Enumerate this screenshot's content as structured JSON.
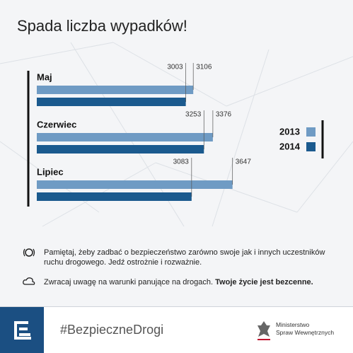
{
  "chart_data": {
    "type": "bar",
    "orientation": "horizontal",
    "title": "Spada liczba wypadków!",
    "categories": [
      "Maj",
      "Czerwiec",
      "Lipiec"
    ],
    "series": [
      {
        "name": "2013",
        "color": "#6f9bc4",
        "values": [
          3106,
          3376,
          3647
        ]
      },
      {
        "name": "2014",
        "color": "#1b5a8e",
        "values": [
          3003,
          3253,
          3083
        ]
      }
    ],
    "xlim": [
      950,
      3650
    ],
    "legend_position": "right"
  },
  "notes": [
    "Pamiętaj, żeby zadbać o bezpieczeństwo zarówno swoje jak i innych uczestników ruchu drogowego. Jedź ostrożnie i rozważnie.",
    {
      "text": "Zwracaj uwagę na warunki panujące na drogach.",
      "bold": "Twoje życie jest bezcenne."
    }
  ],
  "footer": {
    "hashtag": "#BezpieczneDrogi",
    "ministry": [
      "Ministerstwo",
      "Spraw Wewnętrznych"
    ]
  }
}
